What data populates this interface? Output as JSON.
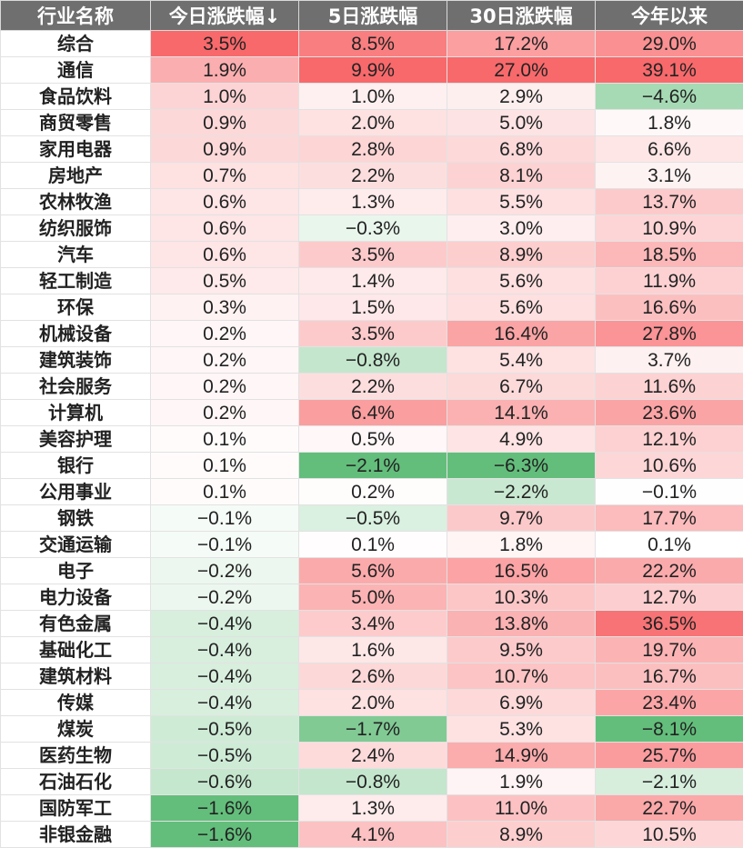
{
  "chart_data": {
    "type": "heatmap",
    "columns": [
      "行业名称",
      "今日涨跌幅↓",
      "5日涨跌幅",
      "30日涨跌幅",
      "今年以来"
    ],
    "color_scale": {
      "positive": "#f8696b",
      "neutral": "#ffffff",
      "negative": "#63be7b"
    },
    "rows": [
      {
        "name": "综合",
        "values": [
          3.5,
          8.5,
          17.2,
          29.0
        ]
      },
      {
        "name": "通信",
        "values": [
          1.9,
          9.9,
          27.0,
          39.1
        ]
      },
      {
        "name": "食品饮料",
        "values": [
          1.0,
          1.0,
          2.9,
          -4.6
        ]
      },
      {
        "name": "商贸零售",
        "values": [
          0.9,
          2.0,
          5.0,
          1.8
        ]
      },
      {
        "name": "家用电器",
        "values": [
          0.9,
          2.8,
          6.8,
          6.6
        ]
      },
      {
        "name": "房地产",
        "values": [
          0.7,
          2.2,
          8.1,
          3.1
        ]
      },
      {
        "name": "农林牧渔",
        "values": [
          0.6,
          1.3,
          5.5,
          13.7
        ]
      },
      {
        "name": "纺织服饰",
        "values": [
          0.6,
          -0.3,
          3.0,
          10.9
        ]
      },
      {
        "name": "汽车",
        "values": [
          0.6,
          3.5,
          8.9,
          18.5
        ]
      },
      {
        "name": "轻工制造",
        "values": [
          0.5,
          1.4,
          5.6,
          11.9
        ]
      },
      {
        "name": "环保",
        "values": [
          0.3,
          1.5,
          5.6,
          16.6
        ]
      },
      {
        "name": "机械设备",
        "values": [
          0.2,
          3.5,
          16.4,
          27.8
        ]
      },
      {
        "name": "建筑装饰",
        "values": [
          0.2,
          -0.8,
          5.4,
          3.7
        ]
      },
      {
        "name": "社会服务",
        "values": [
          0.2,
          2.2,
          6.7,
          11.6
        ]
      },
      {
        "name": "计算机",
        "values": [
          0.2,
          6.4,
          14.1,
          23.6
        ]
      },
      {
        "name": "美容护理",
        "values": [
          0.1,
          0.5,
          4.9,
          12.1
        ]
      },
      {
        "name": "银行",
        "values": [
          0.1,
          -2.1,
          -6.3,
          10.6
        ]
      },
      {
        "name": "公用事业",
        "values": [
          0.1,
          0.2,
          -2.2,
          -0.1
        ]
      },
      {
        "name": "钢铁",
        "values": [
          -0.1,
          -0.5,
          9.7,
          17.7
        ]
      },
      {
        "name": "交通运输",
        "values": [
          -0.1,
          0.1,
          1.8,
          0.1
        ]
      },
      {
        "name": "电子",
        "values": [
          -0.2,
          5.6,
          16.5,
          22.2
        ]
      },
      {
        "name": "电力设备",
        "values": [
          -0.2,
          5.0,
          10.3,
          12.7
        ]
      },
      {
        "name": "有色金属",
        "values": [
          -0.4,
          3.4,
          13.8,
          36.5
        ]
      },
      {
        "name": "基础化工",
        "values": [
          -0.4,
          1.6,
          9.5,
          19.7
        ]
      },
      {
        "name": "建筑材料",
        "values": [
          -0.4,
          2.6,
          10.7,
          16.7
        ]
      },
      {
        "name": "传媒",
        "values": [
          -0.4,
          2.0,
          6.9,
          23.4
        ]
      },
      {
        "name": "煤炭",
        "values": [
          -0.5,
          -1.7,
          5.3,
          -8.1
        ]
      },
      {
        "name": "医药生物",
        "values": [
          -0.5,
          2.4,
          14.9,
          25.7
        ]
      },
      {
        "name": "石油石化",
        "values": [
          -0.6,
          -0.8,
          1.9,
          -2.1
        ]
      },
      {
        "name": "国防军工",
        "values": [
          -1.6,
          1.3,
          11.0,
          22.7
        ]
      },
      {
        "name": "非银金融",
        "values": [
          -1.6,
          4.1,
          8.9,
          10.5
        ]
      }
    ]
  }
}
